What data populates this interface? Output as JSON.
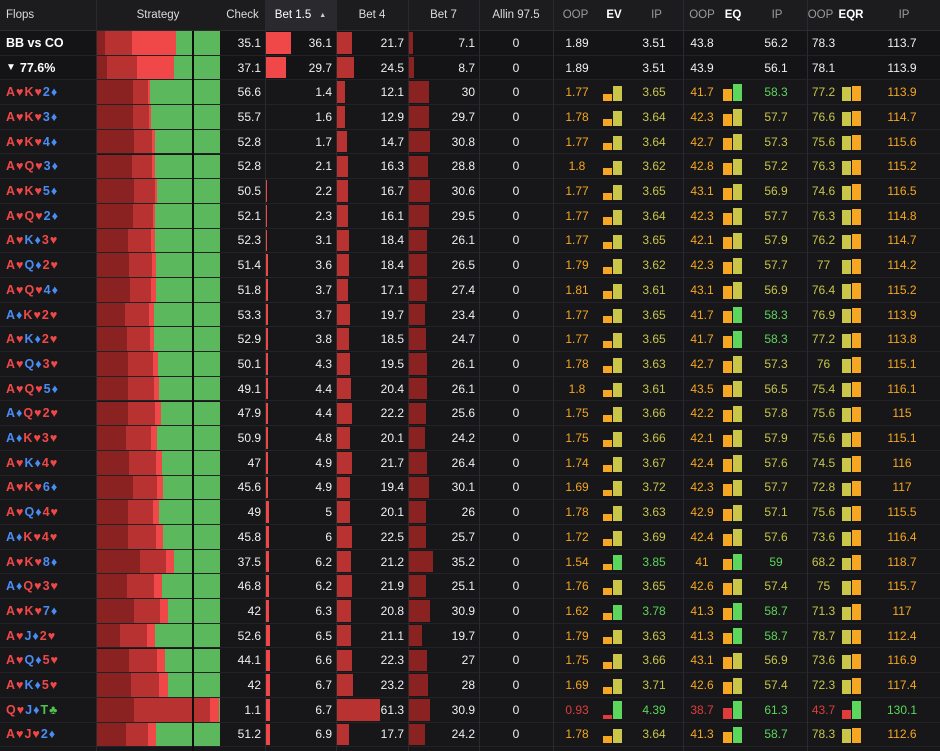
{
  "colors": {
    "check": "#5cb85c",
    "bet_small": "#f04848",
    "bet_mid": "#b83232",
    "bet_big": "#8a2222",
    "oop_orange": "#f5a623",
    "ip_yellow": "#c9c64a",
    "ip_green": "#5cd65c",
    "red_text": "#e03c3c"
  },
  "header": {
    "flops": "Flops",
    "strategy": "Strategy",
    "check": "Check",
    "bet15": "Bet 1.5",
    "bet4": "Bet 4",
    "bet7": "Bet 7",
    "allin": "Allin 97.5",
    "ev_oop": "OOP",
    "ev": "EV",
    "ev_ip": "IP",
    "eq_oop": "OOP",
    "eq": "EQ",
    "eq_ip": "IP",
    "eqr_oop": "OOP",
    "eqr": "EQR",
    "eqr_ip": "IP",
    "sort_icon": "sort-ascending-icon"
  },
  "summary": [
    {
      "label": "BB vs CO",
      "icon": "",
      "check": 35.1,
      "bet15": 36.1,
      "bet4": 21.7,
      "bet7": 7.1,
      "allin": 0,
      "ev_oop": "1.89",
      "ev_ip": "3.51",
      "eq_oop": "43.8",
      "eq_ip": "56.2",
      "eqr_oop": "78.3",
      "eqr_ip": "113.7"
    },
    {
      "label": "77.6%",
      "icon": "filter-icon",
      "check": 37.1,
      "bet15": 29.7,
      "bet4": 24.5,
      "bet7": 8.7,
      "allin": 0,
      "ev_oop": "1.89",
      "ev_ip": "3.51",
      "eq_oop": "43.9",
      "eq_ip": "56.1",
      "eqr_oop": "78.1",
      "eqr_ip": "113.9"
    }
  ],
  "rows": [
    {
      "cards": [
        [
          "A",
          "♥"
        ],
        [
          "K",
          "♥"
        ],
        [
          "2",
          "♦"
        ]
      ],
      "check": 56.6,
      "bet15": 1.4,
      "bet4": 12.1,
      "bet7": 30,
      "allin": 0,
      "ev_oop": "1.77",
      "ev_ip": "3.65",
      "eq_oop": "41.7",
      "eq_ip": "58.3",
      "eqr_oop": "77.2",
      "eqr_ip": "113.9"
    },
    {
      "cards": [
        [
          "A",
          "♥"
        ],
        [
          "K",
          "♥"
        ],
        [
          "3",
          "♦"
        ]
      ],
      "check": 55.7,
      "bet15": 1.6,
      "bet4": 12.9,
      "bet7": 29.7,
      "allin": 0,
      "ev_oop": "1.78",
      "ev_ip": "3.64",
      "eq_oop": "42.3",
      "eq_ip": "57.7",
      "eqr_oop": "76.6",
      "eqr_ip": "114.7"
    },
    {
      "cards": [
        [
          "A",
          "♥"
        ],
        [
          "K",
          "♥"
        ],
        [
          "4",
          "♦"
        ]
      ],
      "check": 52.8,
      "bet15": 1.7,
      "bet4": 14.7,
      "bet7": 30.8,
      "allin": 0,
      "ev_oop": "1.77",
      "ev_ip": "3.64",
      "eq_oop": "42.7",
      "eq_ip": "57.3",
      "eqr_oop": "75.6",
      "eqr_ip": "115.6"
    },
    {
      "cards": [
        [
          "A",
          "♥"
        ],
        [
          "Q",
          "♥"
        ],
        [
          "3",
          "♦"
        ]
      ],
      "check": 52.8,
      "bet15": 2.1,
      "bet4": 16.3,
      "bet7": 28.8,
      "allin": 0,
      "ev_oop": "1.8",
      "ev_ip": "3.62",
      "eq_oop": "42.8",
      "eq_ip": "57.2",
      "eqr_oop": "76.3",
      "eqr_ip": "115.2"
    },
    {
      "cards": [
        [
          "A",
          "♥"
        ],
        [
          "K",
          "♥"
        ],
        [
          "5",
          "♦"
        ]
      ],
      "check": 50.5,
      "bet15": 2.2,
      "bet4": 16.7,
      "bet7": 30.6,
      "allin": 0,
      "ev_oop": "1.77",
      "ev_ip": "3.65",
      "eq_oop": "43.1",
      "eq_ip": "56.9",
      "eqr_oop": "74.6",
      "eqr_ip": "116.5"
    },
    {
      "cards": [
        [
          "A",
          "♥"
        ],
        [
          "Q",
          "♥"
        ],
        [
          "2",
          "♦"
        ]
      ],
      "check": 52.1,
      "bet15": 2.3,
      "bet4": 16.1,
      "bet7": 29.5,
      "allin": 0,
      "ev_oop": "1.77",
      "ev_ip": "3.64",
      "eq_oop": "42.3",
      "eq_ip": "57.7",
      "eqr_oop": "76.3",
      "eqr_ip": "114.8"
    },
    {
      "cards": [
        [
          "A",
          "♥"
        ],
        [
          "K",
          "♦"
        ],
        [
          "3",
          "♥"
        ]
      ],
      "check": 52.3,
      "bet15": 3.1,
      "bet4": 18.4,
      "bet7": 26.1,
      "allin": 0,
      "ev_oop": "1.77",
      "ev_ip": "3.65",
      "eq_oop": "42.1",
      "eq_ip": "57.9",
      "eqr_oop": "76.2",
      "eqr_ip": "114.7"
    },
    {
      "cards": [
        [
          "A",
          "♥"
        ],
        [
          "Q",
          "♦"
        ],
        [
          "2",
          "♥"
        ]
      ],
      "check": 51.4,
      "bet15": 3.6,
      "bet4": 18.4,
      "bet7": 26.5,
      "allin": 0,
      "ev_oop": "1.79",
      "ev_ip": "3.62",
      "eq_oop": "42.3",
      "eq_ip": "57.7",
      "eqr_oop": "77",
      "eqr_ip": "114.2"
    },
    {
      "cards": [
        [
          "A",
          "♥"
        ],
        [
          "Q",
          "♥"
        ],
        [
          "4",
          "♦"
        ]
      ],
      "check": 51.8,
      "bet15": 3.7,
      "bet4": 17.1,
      "bet7": 27.4,
      "allin": 0,
      "ev_oop": "1.81",
      "ev_ip": "3.61",
      "eq_oop": "43.1",
      "eq_ip": "56.9",
      "eqr_oop": "76.4",
      "eqr_ip": "115.2"
    },
    {
      "cards": [
        [
          "A",
          "♦"
        ],
        [
          "K",
          "♥"
        ],
        [
          "2",
          "♥"
        ]
      ],
      "check": 53.3,
      "bet15": 3.7,
      "bet4": 19.7,
      "bet7": 23.4,
      "allin": 0,
      "ev_oop": "1.77",
      "ev_ip": "3.65",
      "eq_oop": "41.7",
      "eq_ip": "58.3",
      "eqr_oop": "76.9",
      "eqr_ip": "113.9"
    },
    {
      "cards": [
        [
          "A",
          "♥"
        ],
        [
          "K",
          "♦"
        ],
        [
          "2",
          "♥"
        ]
      ],
      "check": 52.9,
      "bet15": 3.8,
      "bet4": 18.5,
      "bet7": 24.7,
      "allin": 0,
      "ev_oop": "1.77",
      "ev_ip": "3.65",
      "eq_oop": "41.7",
      "eq_ip": "58.3",
      "eqr_oop": "77.2",
      "eqr_ip": "113.8"
    },
    {
      "cards": [
        [
          "A",
          "♥"
        ],
        [
          "Q",
          "♦"
        ],
        [
          "3",
          "♥"
        ]
      ],
      "check": 50.1,
      "bet15": 4.3,
      "bet4": 19.5,
      "bet7": 26.1,
      "allin": 0,
      "ev_oop": "1.78",
      "ev_ip": "3.63",
      "eq_oop": "42.7",
      "eq_ip": "57.3",
      "eqr_oop": "76",
      "eqr_ip": "115.1"
    },
    {
      "cards": [
        [
          "A",
          "♥"
        ],
        [
          "Q",
          "♥"
        ],
        [
          "5",
          "♦"
        ]
      ],
      "check": 49.1,
      "bet15": 4.4,
      "bet4": 20.4,
      "bet7": 26.1,
      "allin": 0,
      "ev_oop": "1.8",
      "ev_ip": "3.61",
      "eq_oop": "43.5",
      "eq_ip": "56.5",
      "eqr_oop": "75.4",
      "eqr_ip": "116.1"
    },
    {
      "cards": [
        [
          "A",
          "♦"
        ],
        [
          "Q",
          "♥"
        ],
        [
          "2",
          "♥"
        ]
      ],
      "check": 47.9,
      "bet15": 4.4,
      "bet4": 22.2,
      "bet7": 25.6,
      "allin": 0,
      "ev_oop": "1.75",
      "ev_ip": "3.66",
      "eq_oop": "42.2",
      "eq_ip": "57.8",
      "eqr_oop": "75.6",
      "eqr_ip": "115"
    },
    {
      "cards": [
        [
          "A",
          "♦"
        ],
        [
          "K",
          "♥"
        ],
        [
          "3",
          "♥"
        ]
      ],
      "check": 50.9,
      "bet15": 4.8,
      "bet4": 20.1,
      "bet7": 24.2,
      "allin": 0,
      "ev_oop": "1.75",
      "ev_ip": "3.66",
      "eq_oop": "42.1",
      "eq_ip": "57.9",
      "eqr_oop": "75.6",
      "eqr_ip": "115.1"
    },
    {
      "cards": [
        [
          "A",
          "♥"
        ],
        [
          "K",
          "♦"
        ],
        [
          "4",
          "♥"
        ]
      ],
      "check": 47,
      "bet15": 4.9,
      "bet4": 21.7,
      "bet7": 26.4,
      "allin": 0,
      "ev_oop": "1.74",
      "ev_ip": "3.67",
      "eq_oop": "42.4",
      "eq_ip": "57.6",
      "eqr_oop": "74.5",
      "eqr_ip": "116"
    },
    {
      "cards": [
        [
          "A",
          "♥"
        ],
        [
          "K",
          "♥"
        ],
        [
          "6",
          "♦"
        ]
      ],
      "check": 45.6,
      "bet15": 4.9,
      "bet4": 19.4,
      "bet7": 30.1,
      "allin": 0,
      "ev_oop": "1.69",
      "ev_ip": "3.72",
      "eq_oop": "42.3",
      "eq_ip": "57.7",
      "eqr_oop": "72.8",
      "eqr_ip": "117"
    },
    {
      "cards": [
        [
          "A",
          "♥"
        ],
        [
          "Q",
          "♦"
        ],
        [
          "4",
          "♥"
        ]
      ],
      "check": 49,
      "bet15": 5,
      "bet4": 20.1,
      "bet7": 26,
      "allin": 0,
      "ev_oop": "1.78",
      "ev_ip": "3.63",
      "eq_oop": "42.9",
      "eq_ip": "57.1",
      "eqr_oop": "75.6",
      "eqr_ip": "115.5"
    },
    {
      "cards": [
        [
          "A",
          "♦"
        ],
        [
          "K",
          "♥"
        ],
        [
          "4",
          "♥"
        ]
      ],
      "check": 45.8,
      "bet15": 6,
      "bet4": 22.5,
      "bet7": 25.7,
      "allin": 0,
      "ev_oop": "1.72",
      "ev_ip": "3.69",
      "eq_oop": "42.4",
      "eq_ip": "57.6",
      "eqr_oop": "73.6",
      "eqr_ip": "116.4"
    },
    {
      "cards": [
        [
          "A",
          "♥"
        ],
        [
          "K",
          "♥"
        ],
        [
          "8",
          "♦"
        ]
      ],
      "check": 37.5,
      "bet15": 6.2,
      "bet4": 21.2,
      "bet7": 35.2,
      "allin": 0,
      "ev_oop": "1.54",
      "ev_ip": "3.85",
      "eq_oop": "41",
      "eq_ip": "59",
      "eqr_oop": "68.2",
      "eqr_ip": "118.7"
    },
    {
      "cards": [
        [
          "A",
          "♦"
        ],
        [
          "Q",
          "♥"
        ],
        [
          "3",
          "♥"
        ]
      ],
      "check": 46.8,
      "bet15": 6.2,
      "bet4": 21.9,
      "bet7": 25.1,
      "allin": 0,
      "ev_oop": "1.76",
      "ev_ip": "3.65",
      "eq_oop": "42.6",
      "eq_ip": "57.4",
      "eqr_oop": "75",
      "eqr_ip": "115.7"
    },
    {
      "cards": [
        [
          "A",
          "♥"
        ],
        [
          "K",
          "♥"
        ],
        [
          "7",
          "♦"
        ]
      ],
      "check": 42,
      "bet15": 6.3,
      "bet4": 20.8,
      "bet7": 30.9,
      "allin": 0,
      "ev_oop": "1.62",
      "ev_ip": "3.78",
      "eq_oop": "41.3",
      "eq_ip": "58.7",
      "eqr_oop": "71.3",
      "eqr_ip": "117"
    },
    {
      "cards": [
        [
          "A",
          "♥"
        ],
        [
          "J",
          "♦"
        ],
        [
          "2",
          "♥"
        ]
      ],
      "check": 52.6,
      "bet15": 6.5,
      "bet4": 21.1,
      "bet7": 19.7,
      "allin": 0,
      "ev_oop": "1.79",
      "ev_ip": "3.63",
      "eq_oop": "41.3",
      "eq_ip": "58.7",
      "eqr_oop": "78.7",
      "eqr_ip": "112.4"
    },
    {
      "cards": [
        [
          "A",
          "♥"
        ],
        [
          "Q",
          "♦"
        ],
        [
          "5",
          "♥"
        ]
      ],
      "check": 44.1,
      "bet15": 6.6,
      "bet4": 22.3,
      "bet7": 27,
      "allin": 0,
      "ev_oop": "1.75",
      "ev_ip": "3.66",
      "eq_oop": "43.1",
      "eq_ip": "56.9",
      "eqr_oop": "73.6",
      "eqr_ip": "116.9"
    },
    {
      "cards": [
        [
          "A",
          "♥"
        ],
        [
          "K",
          "♦"
        ],
        [
          "5",
          "♥"
        ]
      ],
      "check": 42,
      "bet15": 6.7,
      "bet4": 23.2,
      "bet7": 28,
      "allin": 0,
      "ev_oop": "1.69",
      "ev_ip": "3.71",
      "eq_oop": "42.6",
      "eq_ip": "57.4",
      "eqr_oop": "72.3",
      "eqr_ip": "117.4"
    },
    {
      "cards": [
        [
          "Q",
          "♥"
        ],
        [
          "J",
          "♦"
        ],
        [
          "T",
          "♣"
        ]
      ],
      "check": 1.1,
      "bet15": 6.7,
      "bet4": 61.3,
      "bet7": 30.9,
      "allin": 0,
      "ev_oop": "0.93",
      "ev_ip": "4.39",
      "eq_oop": "38.7",
      "eq_ip": "61.3",
      "eqr_oop": "43.7",
      "eqr_ip": "130.1"
    },
    {
      "cards": [
        [
          "A",
          "♥"
        ],
        [
          "J",
          "♥"
        ],
        [
          "2",
          "♦"
        ]
      ],
      "check": 51.2,
      "bet15": 6.9,
      "bet4": 17.7,
      "bet7": 24.2,
      "allin": 0,
      "ev_oop": "1.78",
      "ev_ip": "3.64",
      "eq_oop": "41.3",
      "eq_ip": "58.7",
      "eqr_oop": "78.3",
      "eqr_ip": "112.6"
    }
  ]
}
